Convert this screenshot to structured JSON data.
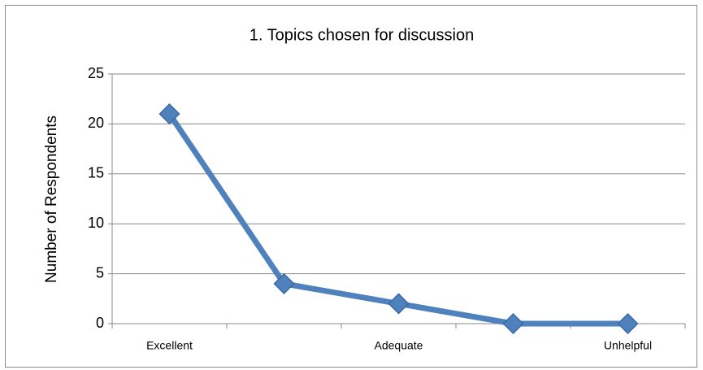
{
  "chart_data": {
    "type": "line",
    "title": "1. Topics chosen for discussion",
    "y_label": "Number of Respondents",
    "categories": [
      "Excellent",
      null,
      "Adequate",
      null,
      "Unhelpful"
    ],
    "values": [
      21,
      4,
      2,
      0,
      0
    ],
    "color": "#4f81bd",
    "ylim": [
      0,
      25
    ],
    "yticks": [
      0,
      5,
      10,
      15,
      20,
      25
    ],
    "grid": true
  }
}
